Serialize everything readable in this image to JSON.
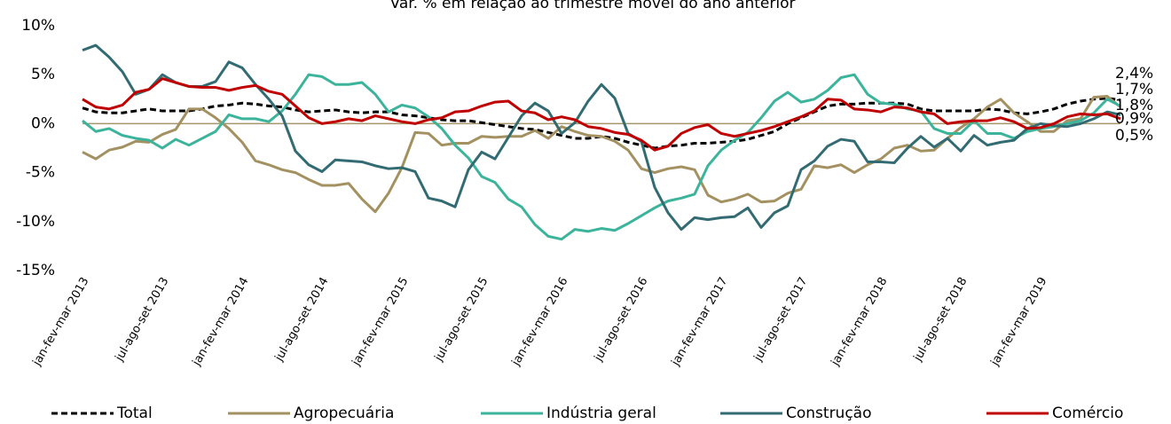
{
  "chart_data": {
    "type": "line",
    "title": "Var. % em relação ao trimestre móvel do ano anterior",
    "categories": [
      "jan-fev-mar 2013",
      null,
      null,
      null,
      null,
      null,
      "jul-ago-set 2013",
      null,
      null,
      null,
      null,
      null,
      "jan-fev-mar 2014",
      null,
      null,
      null,
      null,
      null,
      "jul-ago-set 2014",
      null,
      null,
      null,
      null,
      null,
      "jan-fev-mar 2015",
      null,
      null,
      null,
      null,
      null,
      "jul-ago-set 2015",
      null,
      null,
      null,
      null,
      null,
      "jan-fev-mar 2016",
      null,
      null,
      null,
      null,
      null,
      "jul-ago-set 2016",
      null,
      null,
      null,
      null,
      null,
      "jan-fev-mar 2017",
      null,
      null,
      null,
      null,
      null,
      "jul-ago-set 2017",
      null,
      null,
      null,
      null,
      null,
      "jan-fev-mar 2018",
      null,
      null,
      null,
      null,
      null,
      "jul-ago-set 2018",
      null,
      null,
      null,
      null,
      null,
      "jan-fev-mar 2019",
      null,
      null,
      null,
      null,
      null,
      null
    ],
    "ylim": [
      -15,
      10
    ],
    "yticks": [
      {
        "value": -15,
        "label": "-15%"
      },
      {
        "value": -10,
        "label": "-10%"
      },
      {
        "value": -5,
        "label": "-5%"
      },
      {
        "value": 0,
        "label": "0%"
      },
      {
        "value": 5,
        "label": "5%"
      },
      {
        "value": 10,
        "label": "10%"
      }
    ],
    "zero_line_color": "#a5956a",
    "series": [
      {
        "name": "Total",
        "color": "#000000",
        "dashed": true,
        "values": [
          1.6,
          1.2,
          1.1,
          1.1,
          1.3,
          1.5,
          1.3,
          1.3,
          1.3,
          1.5,
          1.8,
          1.9,
          2.1,
          2.0,
          1.8,
          1.7,
          1.4,
          1.2,
          1.3,
          1.4,
          1.2,
          1.1,
          1.2,
          1.2,
          0.9,
          0.8,
          0.6,
          0.4,
          0.3,
          0.3,
          0.1,
          -0.1,
          -0.3,
          -0.5,
          -0.6,
          -0.9,
          -1.2,
          -1.5,
          -1.5,
          -1.3,
          -1.5,
          -1.9,
          -2.2,
          -2.5,
          -2.3,
          -2.2,
          -2.0,
          -2.0,
          -1.9,
          -1.8,
          -1.6,
          -1.2,
          -0.8,
          0.0,
          0.6,
          1.2,
          1.8,
          2.0,
          2.0,
          2.1,
          2.1,
          2.1,
          2.0,
          1.5,
          1.3,
          1.3,
          1.3,
          1.3,
          1.5,
          1.4,
          1.1,
          1.0,
          1.2,
          1.5,
          2.0,
          2.3,
          2.5,
          2.6,
          2.4
        ],
        "value_labels": [
          null,
          null,
          null,
          null,
          null,
          null,
          null,
          null,
          null,
          null,
          null,
          null,
          null,
          null,
          null,
          null,
          null,
          null,
          null,
          null,
          null,
          null,
          null,
          null,
          null,
          null,
          null,
          null,
          null,
          null,
          null,
          null,
          null,
          null,
          null,
          null,
          null,
          null,
          null,
          null,
          null,
          null,
          null,
          null,
          null,
          null,
          null,
          null,
          null,
          null,
          null,
          null,
          null,
          null,
          null,
          null,
          null,
          null,
          null,
          null,
          null,
          null,
          null,
          null,
          null,
          null,
          null,
          null,
          null,
          null,
          null,
          null,
          null,
          null,
          null,
          null,
          null,
          null,
          "2,4%"
        ]
      },
      {
        "name": "Agropecuária",
        "color": "#a39161",
        "dashed": false,
        "values": [
          -2.9,
          -3.6,
          -2.7,
          -2.4,
          -1.8,
          -1.9,
          -1.1,
          -0.6,
          1.5,
          1.5,
          0.6,
          -0.5,
          -1.9,
          -3.8,
          -4.2,
          -4.7,
          -5.0,
          -5.7,
          -6.3,
          -6.3,
          -6.1,
          -7.7,
          -9.0,
          -7.1,
          -4.5,
          -0.9,
          -1.0,
          -2.2,
          -2.0,
          -2.0,
          -1.3,
          -1.4,
          -1.3,
          -1.3,
          -0.7,
          -1.5,
          -0.3,
          -0.8,
          -1.2,
          -1.3,
          -1.8,
          -2.7,
          -4.6,
          -5.0,
          -4.6,
          -4.4,
          -4.7,
          -7.3,
          -8.0,
          -7.7,
          -7.2,
          -8.0,
          -7.9,
          -7.1,
          -6.7,
          -4.3,
          -4.5,
          -4.2,
          -5.0,
          -4.2,
          -3.6,
          -2.5,
          -2.2,
          -2.8,
          -2.7,
          -1.5,
          -0.4,
          0.5,
          1.7,
          2.5,
          1.1,
          0.2,
          -0.8,
          -0.8,
          0.3,
          0.5,
          2.7,
          2.8,
          1.7
        ],
        "value_labels": [
          null,
          null,
          null,
          null,
          null,
          null,
          null,
          null,
          null,
          null,
          null,
          null,
          null,
          null,
          null,
          null,
          null,
          null,
          null,
          null,
          null,
          null,
          null,
          null,
          null,
          null,
          null,
          null,
          null,
          null,
          null,
          null,
          null,
          null,
          null,
          null,
          null,
          null,
          null,
          null,
          null,
          null,
          null,
          null,
          null,
          null,
          null,
          null,
          null,
          null,
          null,
          null,
          null,
          null,
          null,
          null,
          null,
          null,
          null,
          null,
          null,
          null,
          null,
          null,
          null,
          null,
          null,
          null,
          null,
          null,
          null,
          null,
          null,
          null,
          null,
          null,
          null,
          null,
          "1,7%"
        ]
      },
      {
        "name": "Indústria geral",
        "color": "#3cb49c",
        "dashed": false,
        "values": [
          0.3,
          -0.8,
          -0.5,
          -1.2,
          -1.5,
          -1.7,
          -2.5,
          -1.6,
          -2.2,
          -1.5,
          -0.8,
          0.9,
          0.5,
          0.5,
          0.2,
          1.3,
          3.0,
          5.0,
          4.8,
          4.0,
          4.0,
          4.2,
          3.0,
          1.2,
          1.9,
          1.6,
          0.7,
          -0.5,
          -2.2,
          -3.5,
          -5.4,
          -6.0,
          -7.7,
          -8.5,
          -10.3,
          -11.5,
          -11.8,
          -10.8,
          -11.0,
          -10.7,
          -10.9,
          -10.2,
          -9.4,
          -8.6,
          -7.9,
          -7.6,
          -7.2,
          -4.3,
          -2.7,
          -1.7,
          -0.9,
          0.6,
          2.3,
          3.2,
          2.2,
          2.5,
          3.4,
          4.7,
          5.0,
          3.0,
          2.1,
          2.0,
          1.5,
          1.3,
          -0.5,
          -1.0,
          -1.0,
          0.3,
          -1.0,
          -1.0,
          -1.5,
          -0.8,
          -0.5,
          -0.3,
          0.0,
          0.3,
          1.1,
          2.5,
          1.8
        ],
        "value_labels": [
          null,
          null,
          null,
          null,
          null,
          null,
          null,
          null,
          null,
          null,
          null,
          null,
          null,
          null,
          null,
          null,
          null,
          null,
          null,
          null,
          null,
          null,
          null,
          null,
          null,
          null,
          null,
          null,
          null,
          null,
          null,
          null,
          null,
          null,
          null,
          null,
          null,
          null,
          null,
          null,
          null,
          null,
          null,
          null,
          null,
          null,
          null,
          null,
          null,
          null,
          null,
          null,
          null,
          null,
          null,
          null,
          null,
          null,
          null,
          null,
          null,
          null,
          null,
          null,
          null,
          null,
          null,
          null,
          null,
          null,
          null,
          null,
          null,
          null,
          null,
          null,
          null,
          null,
          "1,8%"
        ]
      },
      {
        "name": "Construção",
        "color": "#336b73",
        "dashed": false,
        "values": [
          7.5,
          8.0,
          6.8,
          5.3,
          3.0,
          3.5,
          5.0,
          4.2,
          3.8,
          3.8,
          4.3,
          6.3,
          5.7,
          4.0,
          2.5,
          0.8,
          -2.8,
          -4.2,
          -4.9,
          -3.7,
          -3.8,
          -3.9,
          -4.3,
          -4.6,
          -4.5,
          -4.9,
          -7.6,
          -7.9,
          -8.5,
          -4.7,
          -2.9,
          -3.6,
          -1.4,
          0.8,
          2.1,
          1.3,
          -1.0,
          0.1,
          2.3,
          4.0,
          2.6,
          -1.0,
          -1.8,
          -6.5,
          -9.1,
          -10.8,
          -9.6,
          -9.8,
          -9.6,
          -9.5,
          -8.6,
          -10.6,
          -9.1,
          -8.4,
          -4.7,
          -3.8,
          -2.3,
          -1.6,
          -1.8,
          -3.9,
          -3.9,
          -4.0,
          -2.5,
          -1.3,
          -2.4,
          -1.5,
          -2.8,
          -1.2,
          -2.2,
          -1.9,
          -1.7,
          -0.5,
          0.0,
          -0.2,
          -0.3,
          0.0,
          0.5,
          1.2,
          0.9
        ],
        "value_labels": [
          null,
          null,
          null,
          null,
          null,
          null,
          null,
          null,
          null,
          null,
          null,
          null,
          null,
          null,
          null,
          null,
          null,
          null,
          null,
          null,
          null,
          null,
          null,
          null,
          null,
          null,
          null,
          null,
          null,
          null,
          null,
          null,
          null,
          null,
          null,
          null,
          null,
          null,
          null,
          null,
          null,
          null,
          null,
          null,
          null,
          null,
          null,
          null,
          null,
          null,
          null,
          null,
          null,
          null,
          null,
          null,
          null,
          null,
          null,
          null,
          null,
          null,
          null,
          null,
          null,
          null,
          null,
          null,
          null,
          null,
          null,
          null,
          null,
          null,
          null,
          null,
          null,
          null,
          "0,9%"
        ]
      },
      {
        "name": "Comércio",
        "color": "#c00000",
        "dashed": false,
        "values": [
          2.5,
          1.7,
          1.5,
          1.9,
          3.2,
          3.5,
          4.6,
          4.2,
          3.8,
          3.7,
          3.7,
          3.4,
          3.7,
          3.9,
          3.3,
          3.0,
          1.8,
          0.6,
          0.0,
          0.2,
          0.5,
          0.3,
          0.8,
          0.5,
          0.2,
          0.0,
          0.4,
          0.6,
          1.2,
          1.3,
          1.8,
          2.2,
          2.3,
          1.3,
          1.1,
          0.4,
          0.7,
          0.4,
          -0.3,
          -0.5,
          -0.9,
          -1.1,
          -1.7,
          -2.7,
          -2.3,
          -1.0,
          -0.4,
          -0.1,
          -1.0,
          -1.3,
          -1.0,
          -0.7,
          -0.3,
          0.2,
          0.7,
          1.3,
          2.5,
          2.4,
          1.5,
          1.4,
          1.2,
          1.7,
          1.6,
          1.2,
          1.0,
          0.0,
          0.2,
          0.3,
          0.3,
          0.6,
          0.2,
          -0.5,
          -0.4,
          0.0,
          0.7,
          1.0,
          0.9,
          1.0,
          0.5
        ],
        "value_labels": [
          null,
          null,
          null,
          null,
          null,
          null,
          null,
          null,
          null,
          null,
          null,
          null,
          null,
          null,
          null,
          null,
          null,
          null,
          null,
          null,
          null,
          null,
          null,
          null,
          null,
          null,
          null,
          null,
          null,
          null,
          null,
          null,
          null,
          null,
          null,
          null,
          null,
          null,
          null,
          null,
          null,
          null,
          null,
          null,
          null,
          null,
          null,
          null,
          null,
          null,
          null,
          null,
          null,
          null,
          null,
          null,
          null,
          null,
          null,
          null,
          null,
          null,
          null,
          null,
          null,
          null,
          null,
          null,
          null,
          null,
          null,
          null,
          null,
          null,
          null,
          null,
          null,
          null,
          "0,5%"
        ]
      }
    ]
  }
}
